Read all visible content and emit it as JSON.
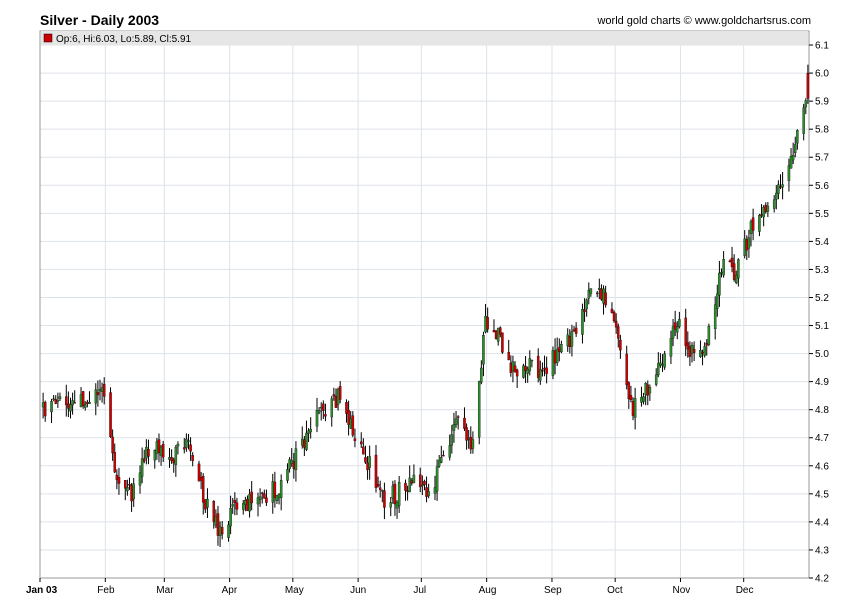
{
  "header": {
    "title": "Silver - Daily 2003",
    "credit": "world gold charts © www.goldchartsrus.com"
  },
  "legend": {
    "text": "Op:6, Hi:6.03, Lo:5.89, Cl:5.91",
    "marker_color": "#cc0000"
  },
  "colors": {
    "up": "#2e8b2e",
    "down": "#cc0000",
    "wick": "#000000",
    "grid": "#dde3ea",
    "legend_bg": "#e6e6e6"
  },
  "chart_data": {
    "type": "candlestick",
    "title": "Silver - Daily 2003",
    "ylim": [
      4.2,
      6.15
    ],
    "y_ticks": [
      "4.2",
      "4.3",
      "4.4",
      "4.5",
      "4.6",
      "4.7",
      "4.8",
      "4.9",
      "5.0",
      "5.1",
      "5.2",
      "5.3",
      "5.4",
      "5.5",
      "5.6",
      "5.7",
      "5.8",
      "5.9",
      "6.0",
      "6.1"
    ],
    "x_tick_labels": [
      "Jan 03",
      "Feb",
      "Mar",
      "Apr",
      "May",
      "Jun",
      "Jul",
      "Aug",
      "Sep",
      "Oct",
      "Nov",
      "Dec"
    ],
    "y_axis_position": "right",
    "grid": true,
    "weekly_anchor_closes": [
      [
        "2003-01-02",
        4.8
      ],
      [
        "2003-01-09",
        4.82
      ],
      [
        "2003-01-16",
        4.8
      ],
      [
        "2003-01-23",
        4.84
      ],
      [
        "2003-01-30",
        4.88
      ],
      [
        "2003-02-06",
        4.55
      ],
      [
        "2003-02-13",
        4.5
      ],
      [
        "2003-02-20",
        4.64
      ],
      [
        "2003-02-27",
        4.67
      ],
      [
        "2003-03-06",
        4.64
      ],
      [
        "2003-03-13",
        4.67
      ],
      [
        "2003-03-20",
        4.47
      ],
      [
        "2003-03-27",
        4.36
      ],
      [
        "2003-04-03",
        4.44
      ],
      [
        "2003-04-10",
        4.47
      ],
      [
        "2003-04-17",
        4.5
      ],
      [
        "2003-04-24",
        4.52
      ],
      [
        "2003-05-01",
        4.62
      ],
      [
        "2003-05-08",
        4.72
      ],
      [
        "2003-05-15",
        4.8
      ],
      [
        "2003-05-22",
        4.84
      ],
      [
        "2003-05-29",
        4.74
      ],
      [
        "2003-06-05",
        4.62
      ],
      [
        "2003-06-12",
        4.48
      ],
      [
        "2003-06-19",
        4.5
      ],
      [
        "2003-06-26",
        4.56
      ],
      [
        "2003-07-03",
        4.5
      ],
      [
        "2003-07-10",
        4.6
      ],
      [
        "2003-07-17",
        4.78
      ],
      [
        "2003-07-24",
        4.66
      ],
      [
        "2003-07-31",
        5.1
      ],
      [
        "2003-08-07",
        5.05
      ],
      [
        "2003-08-14",
        4.92
      ],
      [
        "2003-08-21",
        4.98
      ],
      [
        "2003-08-28",
        4.92
      ],
      [
        "2003-09-04",
        5.02
      ],
      [
        "2003-09-11",
        5.05
      ],
      [
        "2003-09-18",
        5.2
      ],
      [
        "2003-09-25",
        5.22
      ],
      [
        "2003-10-02",
        5.05
      ],
      [
        "2003-10-09",
        4.8
      ],
      [
        "2003-10-16",
        4.88
      ],
      [
        "2003-10-23",
        4.95
      ],
      [
        "2003-10-30",
        5.12
      ],
      [
        "2003-11-06",
        5.0
      ],
      [
        "2003-11-13",
        5.02
      ],
      [
        "2003-11-20",
        5.32
      ],
      [
        "2003-11-27",
        5.28
      ],
      [
        "2003-12-04",
        5.45
      ],
      [
        "2003-12-11",
        5.52
      ],
      [
        "2003-12-18",
        5.62
      ],
      [
        "2003-12-24",
        5.72
      ],
      [
        "2003-12-31",
        5.91
      ]
    ],
    "last_bar": {
      "open": 6.0,
      "high": 6.03,
      "low": 5.89,
      "close": 5.91
    }
  }
}
